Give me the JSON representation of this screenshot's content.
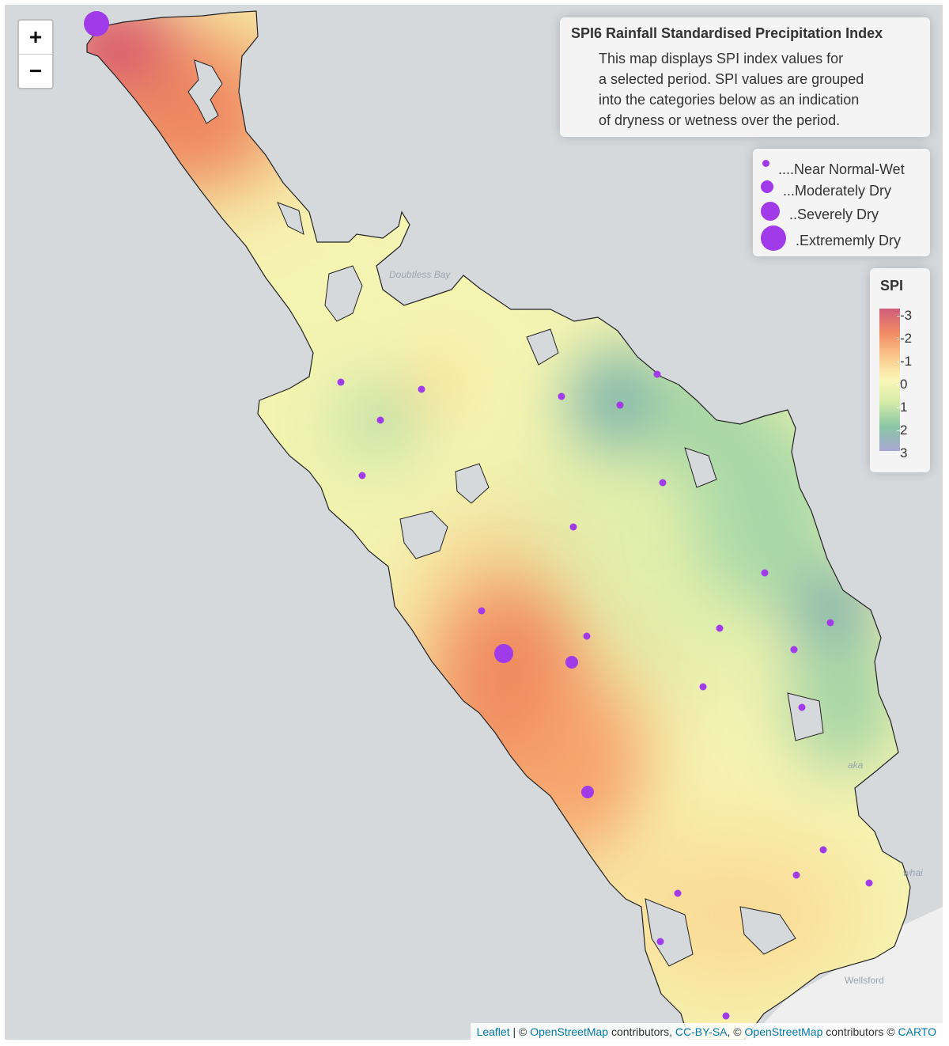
{
  "zoom": {
    "in_label": "+",
    "out_label": "−"
  },
  "info_box": {
    "title": "SPI6 Rainfall Standardised Precipitation Index",
    "lines": [
      "This map displays SPI index values for",
      "a selected period. SPI values are grouped",
      "into the categories below as an indication",
      "of dryness or wetness over the period."
    ]
  },
  "size_legend": {
    "items": [
      {
        "label": "....Near Normal-Wet",
        "category": "near-normal-wet"
      },
      {
        "label": "...Moderately Dry",
        "category": "moderately-dry"
      },
      {
        "label": "..Severely Dry",
        "category": "severely-dry"
      },
      {
        "label": ".Extrememly Dry",
        "category": "extremely-dry"
      }
    ]
  },
  "spi_legend": {
    "title": "SPI",
    "ticks": [
      "-3",
      "-2",
      "-1",
      "0",
      "1",
      "2",
      "3"
    ]
  },
  "place_labels": {
    "doubtless_bay": "Doubtless Bay",
    "wellsford": "Wellsford",
    "aka": "aka",
    "whai": "whai"
  },
  "attribution": {
    "leaflet": "Leaflet",
    "sep1": " | © ",
    "osm1": "OpenStreetMap",
    "t1": " contributors, ",
    "ccbysa": "CC-BY-SA",
    "sep2": ", © ",
    "osm2": "OpenStreetMap",
    "t2": " contributors © ",
    "carto": "CARTO"
  },
  "colors": {
    "marker": "#a13bea",
    "spi_dry": "#d0587c",
    "spi_neutral": "#faf7b8",
    "spi_wet": "#9da6cf",
    "water": "#d6d9dc"
  },
  "marker_sizes_by_category": {
    "near-normal-wet": 4.5,
    "moderately-dry": 8,
    "severely-dry": 12,
    "extremely-dry": 16
  }
}
